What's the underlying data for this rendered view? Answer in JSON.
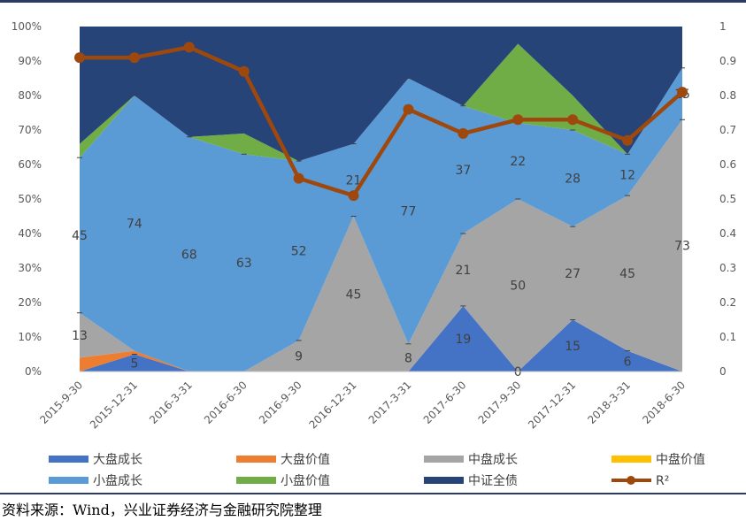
{
  "chart_data": {
    "type": "area",
    "stacked_percent": true,
    "categories": [
      "2015-9-30",
      "2015-12-31",
      "2016-3-31",
      "2016-6-30",
      "2016-9-30",
      "2016-12-31",
      "2017-3-31",
      "2017-6-30",
      "2017-9-30",
      "2017-12-31",
      "2018-3-31",
      "2018-6-30"
    ],
    "series": [
      {
        "name": "大盘成长",
        "color": "#4472c4",
        "values": [
          0,
          5,
          0,
          0,
          0,
          0,
          0,
          19,
          0,
          15,
          6,
          0
        ]
      },
      {
        "name": "大盘价值",
        "color": "#ed7d31",
        "values": [
          4,
          1,
          0,
          0,
          0,
          0,
          0,
          0,
          0,
          0,
          0,
          0
        ]
      },
      {
        "name": "中盘成长",
        "color": "#a5a5a5",
        "values": [
          13,
          0,
          0,
          0,
          9,
          45,
          8,
          21,
          50,
          27,
          45,
          73
        ]
      },
      {
        "name": "中盘价值",
        "color": "#ffc000",
        "values": [
          0,
          0,
          0,
          0,
          0,
          0,
          0,
          0,
          0,
          0,
          0,
          0
        ]
      },
      {
        "name": "小盘成长",
        "color": "#5b9bd5",
        "values": [
          45,
          74,
          68,
          63,
          52,
          21,
          77,
          37,
          22,
          28,
          12,
          15
        ]
      },
      {
        "name": "小盘价值",
        "color": "#70ad47",
        "values": [
          4,
          0,
          0,
          6,
          0,
          0,
          0,
          0,
          23,
          10,
          0,
          0
        ]
      },
      {
        "name": "中证全债",
        "color": "#264478",
        "values": [
          34,
          20,
          32,
          31,
          39,
          34,
          15,
          23,
          5,
          20,
          37,
          12
        ]
      }
    ],
    "line_series": {
      "name": "R²",
      "color": "#9e480e",
      "axis": "right",
      "values": [
        0.91,
        0.91,
        0.94,
        0.87,
        0.56,
        0.51,
        0.76,
        0.69,
        0.73,
        0.73,
        0.67,
        0.81
      ]
    },
    "data_labels": [
      {
        "series": 0,
        "values": [
          "",
          "5",
          "",
          "",
          "",
          "",
          "",
          "19",
          "0",
          "15",
          "6",
          ""
        ]
      },
      {
        "series": 2,
        "values": [
          "13",
          "",
          "",
          "",
          "9",
          "45",
          "8",
          "21",
          "50",
          "27",
          "45",
          "73"
        ]
      },
      {
        "series": 4,
        "values": [
          "45",
          "74",
          "68",
          "63",
          "52",
          "21",
          "77",
          "37",
          "22",
          "28",
          "12",
          "15"
        ]
      }
    ],
    "y_left": {
      "ticks": [
        "0%",
        "10%",
        "20%",
        "30%",
        "40%",
        "50%",
        "60%",
        "70%",
        "80%",
        "90%",
        "100%"
      ],
      "ylim": [
        0,
        100
      ]
    },
    "y_right": {
      "ticks": [
        "0",
        "0.1",
        "0.2",
        "0.3",
        "0.4",
        "0.5",
        "0.6",
        "0.7",
        "0.8",
        "0.9",
        "1"
      ],
      "ylim": [
        0,
        1
      ]
    },
    "grid": false,
    "legend": {
      "placement": "bottom",
      "columns": 4,
      "items": [
        {
          "label": "大盘成长",
          "color": "#4472c4",
          "kind": "swatch"
        },
        {
          "label": "大盘价值",
          "color": "#ed7d31",
          "kind": "swatch"
        },
        {
          "label": "中盘成长",
          "color": "#a5a5a5",
          "kind": "swatch"
        },
        {
          "label": "中盘价值",
          "color": "#ffc000",
          "kind": "swatch"
        },
        {
          "label": "小盘成长",
          "color": "#5b9bd5",
          "kind": "swatch"
        },
        {
          "label": "小盘价值",
          "color": "#70ad47",
          "kind": "swatch"
        },
        {
          "label": "中证全债",
          "color": "#264478",
          "kind": "swatch"
        },
        {
          "label": "R²",
          "color": "#9e480e",
          "kind": "line-marker"
        }
      ]
    }
  },
  "source_note": "资料来源：Wind，兴业证券经济与金融研究院整理"
}
